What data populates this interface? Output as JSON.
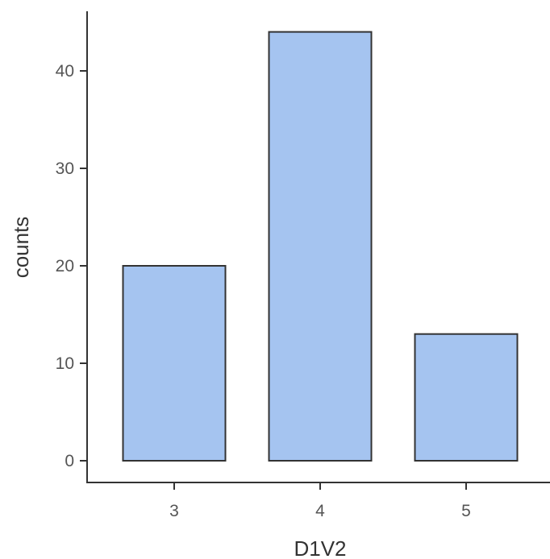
{
  "chart_data": {
    "type": "bar",
    "title": "",
    "xlabel": "D1V2",
    "ylabel": "counts",
    "categories": [
      "3",
      "4",
      "5"
    ],
    "values": [
      20,
      44,
      13
    ],
    "ylim": [
      0,
      46.5
    ],
    "y_ticks": [
      0,
      10,
      20,
      30,
      40
    ],
    "grid": false,
    "legend": "none",
    "colors": {
      "bar_fill": "#a5c4f0",
      "bar_stroke": "#333333",
      "axis": "#333333"
    }
  }
}
